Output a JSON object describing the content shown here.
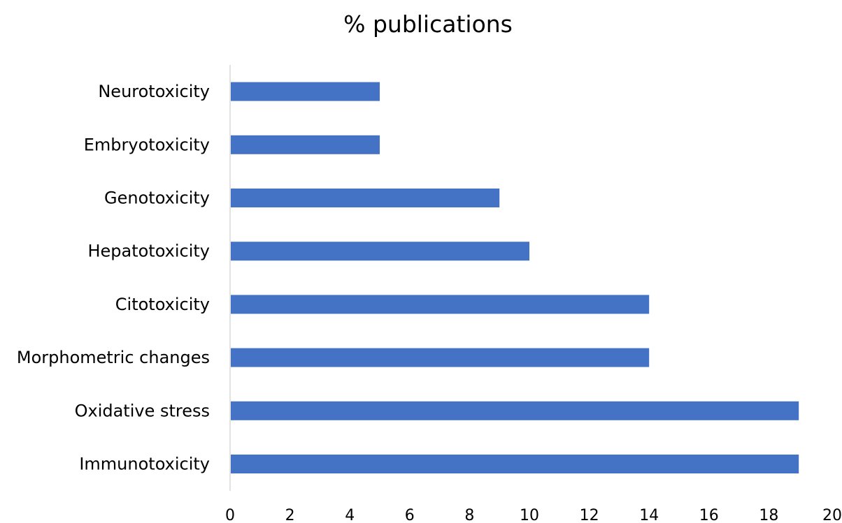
{
  "chart_data": {
    "type": "bar",
    "orientation": "horizontal",
    "title": "% publications",
    "xlabel": "",
    "ylabel": "",
    "categories": [
      "Neurotoxicity",
      "Embryotoxicity",
      "Genotoxicity",
      "Hepatotoxicity",
      "Citotoxicity",
      "Morphometric changes",
      "Oxidative stress",
      "Immunotoxicity"
    ],
    "values": [
      5,
      5,
      9,
      10,
      14,
      14,
      19,
      19
    ],
    "xlim": [
      0,
      20
    ],
    "x_ticks": [
      0,
      2,
      4,
      6,
      8,
      10,
      12,
      14,
      16,
      18,
      20
    ],
    "grid": false,
    "legend": "none",
    "bar_color": "#4472C4",
    "axis_color": "#D9D9D9"
  }
}
